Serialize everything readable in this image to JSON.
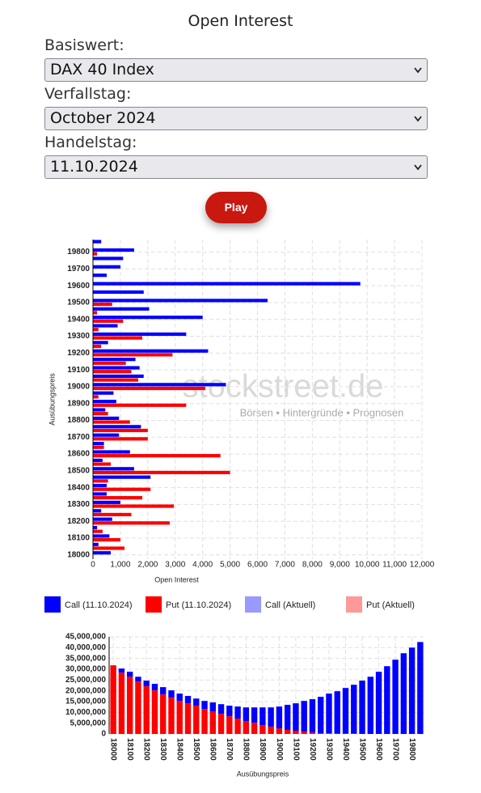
{
  "title": "Open Interest",
  "fields": [
    {
      "label": "Basiswert:",
      "value": "DAX 40 Index"
    },
    {
      "label": "Verfallstag:",
      "value": "October 2024"
    },
    {
      "label": "Handelstag:",
      "value": "11.10.2024"
    }
  ],
  "button": "Play",
  "watermark": {
    "brand": "stockstreet.de",
    "tagline": "Börsen • Hintergründe • Prognosen"
  },
  "chart_data": [
    {
      "type": "bar",
      "orientation": "horizontal",
      "grid": true,
      "x_label": "Open Interest",
      "y_label": "Ausübungspreis",
      "categories": [
        "18000",
        null,
        "18100",
        null,
        "18200",
        null,
        "18300",
        null,
        "18400",
        null,
        "18500",
        null,
        "18600",
        null,
        "18700",
        null,
        "18800",
        null,
        "18900",
        null,
        "19000",
        null,
        "19100",
        null,
        "19200",
        null,
        "19300",
        null,
        "19400",
        null,
        "19500",
        null,
        "19600",
        null,
        "19700",
        null,
        "19800",
        null
      ],
      "xlim": [
        0,
        12000
      ],
      "xticks": [
        0,
        {
          "value": 1000,
          "label": "1,000"
        },
        {
          "value": 2000,
          "label": "2,000"
        },
        {
          "value": 3000,
          "label": "3,000"
        },
        {
          "value": 4000,
          "label": "4,000"
        },
        {
          "value": 5000,
          "label": "5,000"
        },
        {
          "value": 6000,
          "label": "6,000"
        },
        {
          "value": 7000,
          "label": "7,000"
        },
        {
          "value": 8000,
          "label": "8,000"
        },
        {
          "value": 9000,
          "label": "9,000"
        },
        {
          "value": 10000,
          "label": "10,000"
        },
        {
          "value": 11000,
          "label": "11,000"
        },
        {
          "value": 12000,
          "label": "12,000"
        }
      ],
      "series": [
        {
          "name": "Call (11.10.2024)",
          "color": "#0000ff",
          "values": [
            650,
            200,
            600,
            150,
            700,
            300,
            1000,
            500,
            500,
            2100,
            1500,
            350,
            1350,
            400,
            950,
            1750,
            950,
            450,
            850,
            750,
            4850,
            1850,
            1700,
            1550,
            4200,
            550,
            3400,
            900,
            4000,
            2050,
            6370,
            1850,
            9750,
            500,
            1000,
            1100,
            1500,
            300
          ]
        },
        {
          "name": "Put (11.10.2024)",
          "color": "#ff0000",
          "values": [
            0,
            1150,
            1000,
            350,
            2800,
            1400,
            2950,
            1800,
            2100,
            550,
            5000,
            650,
            4650,
            400,
            2000,
            2000,
            1350,
            550,
            3400,
            200,
            4100,
            1650,
            1400,
            1200,
            2900,
            300,
            1800,
            200,
            1100,
            150,
            700,
            0,
            0,
            0,
            0,
            0,
            150,
            0
          ]
        },
        {
          "name": "Call (Aktuell)",
          "color": "#9999ff",
          "values": [
            null,
            null,
            null,
            null,
            null,
            null,
            null,
            null,
            null,
            null,
            null,
            null,
            null,
            null,
            null,
            null,
            null,
            null,
            null,
            null,
            null,
            null,
            null,
            null,
            null,
            null,
            null,
            null,
            null,
            null,
            null,
            null,
            null,
            null,
            null,
            null,
            null,
            null
          ]
        },
        {
          "name": "Put (Aktuell)",
          "color": "#ff9999",
          "values": [
            null,
            null,
            null,
            null,
            null,
            null,
            null,
            null,
            null,
            null,
            null,
            null,
            null,
            null,
            null,
            null,
            null,
            null,
            null,
            null,
            null,
            null,
            null,
            null,
            null,
            null,
            null,
            null,
            null,
            null,
            null,
            null,
            null,
            null,
            null,
            null,
            null,
            null
          ]
        }
      ]
    },
    {
      "type": "bar",
      "stacked": true,
      "grid": true,
      "x_label": "Ausübungspreis",
      "categories": [
        "18000",
        null,
        "18100",
        null,
        "18200",
        null,
        "18300",
        null,
        "18400",
        null,
        "18500",
        null,
        "18600",
        null,
        "18700",
        null,
        "18800",
        null,
        "18900",
        null,
        "19000",
        null,
        "19100",
        null,
        "19200",
        null,
        "19300",
        null,
        "19400",
        null,
        "19500",
        null,
        "19600",
        null,
        "19700",
        null,
        "19800",
        null
      ],
      "ylim": [
        0,
        45000000
      ],
      "yticks": [
        0,
        {
          "value": 5000000,
          "label": "5,000,000"
        },
        {
          "value": 10000000,
          "label": "10,000,000"
        },
        {
          "value": 15000000,
          "label": "15,000,000"
        },
        {
          "value": 20000000,
          "label": "20,000,000"
        },
        {
          "value": 25000000,
          "label": "25,000,000"
        },
        {
          "value": 30000000,
          "label": "30,000,000"
        },
        {
          "value": 35000000,
          "label": "35,000,000"
        },
        {
          "value": 40000000,
          "label": "40,000,000"
        },
        {
          "value": 45000000,
          "label": "45,000,000"
        }
      ],
      "series": [
        {
          "color": "#ff0000",
          "values": [
            31800000,
            28400000,
            26500000,
            24300000,
            22100000,
            20200000,
            18300000,
            16800000,
            15300000,
            14200000,
            13100000,
            11600000,
            10500000,
            9300000,
            8200000,
            7100000,
            6000000,
            5200000,
            4100000,
            3400000,
            2600000,
            1900000,
            1500000,
            1100000,
            700000,
            400000,
            300000,
            200000,
            100000,
            100000,
            0,
            0,
            0,
            0,
            0,
            0,
            0,
            0
          ]
        },
        {
          "color": "#0000ff",
          "values": [
            0,
            1900000,
            2300000,
            2200000,
            2600000,
            3000000,
            3400000,
            3400000,
            3400000,
            3400000,
            3300000,
            3700000,
            4100000,
            4500000,
            4900000,
            5600000,
            6300000,
            7100000,
            8200000,
            8900000,
            10100000,
            11600000,
            12700000,
            14200000,
            15400000,
            16800000,
            18400000,
            19600000,
            21200000,
            22700000,
            24700000,
            26500000,
            28800000,
            31400000,
            34400000,
            37400000,
            40000000,
            42600000
          ]
        }
      ]
    }
  ]
}
